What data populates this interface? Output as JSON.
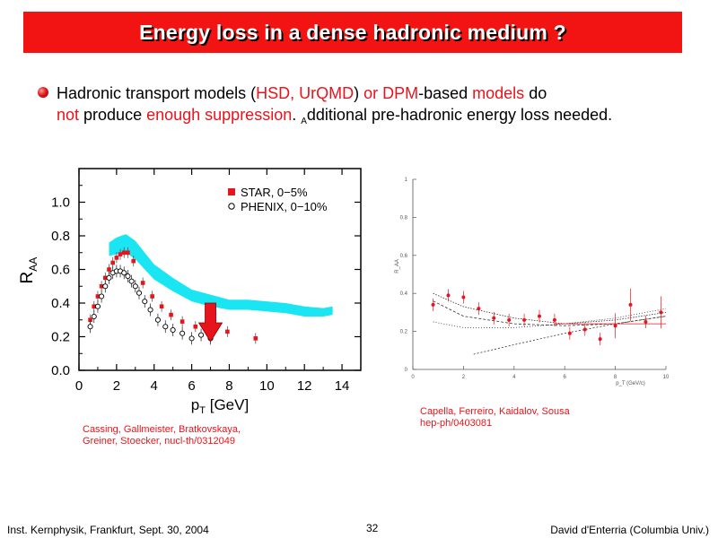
{
  "header": {
    "title": "Energy loss in a dense hadronic medium ?"
  },
  "bullet": {
    "t1": "Hadronic transport models (",
    "t2": "HSD, UrQMD",
    "t3": ") ",
    "t4": "or DPM",
    "t5": "-based ",
    "t6": "models",
    "t7": " do",
    "t8": "not",
    "t9": " produce ",
    "t10": "enough suppression",
    "t11": ". ",
    "t12": "A",
    "t13": "dditional pre-hadronic energy loss needed."
  },
  "credits": {
    "left_line1": "Cassing, Gallmeister, Bratkovskaya,",
    "left_line2": "Greiner, Stoecker, nucl-th/0312049",
    "right_line1": "Capella, Ferreiro, Kaidalov, Sousa",
    "right_line2": "hep-ph/0403081"
  },
  "footer": {
    "left": "Inst. Kernphysik, Frankfurt, Sept. 30, 2004",
    "page": "32",
    "right": "David d'Enterria (Columbia Univ.)"
  },
  "colors": {
    "accent": "#f21313",
    "band": "#19e6f2",
    "data_red": "#e8141b"
  },
  "chart_data": [
    {
      "type": "scatter",
      "xlabel": "p_T [GeV]",
      "ylabel": "R_AA",
      "xlim": [
        0,
        15
      ],
      "ylim": [
        0,
        1.2
      ],
      "xticks": [
        "0",
        "2",
        "4",
        "6",
        "8",
        "10",
        "12",
        "14"
      ],
      "yticks": [
        "0.0",
        "0.2",
        "0.4",
        "0.6",
        "0.8",
        "1.0"
      ],
      "legend_position": "top-right",
      "series": [
        {
          "name": "STAR, 0−5%",
          "marker": "filled-square",
          "x": [
            0.6,
            0.8,
            1.0,
            1.2,
            1.4,
            1.6,
            1.8,
            2.0,
            2.2,
            2.4,
            2.6,
            2.9,
            3.4,
            3.9,
            4.4,
            4.9,
            5.5,
            6.2,
            7.0,
            7.9,
            9.4
          ],
          "y": [
            0.3,
            0.38,
            0.44,
            0.5,
            0.55,
            0.6,
            0.64,
            0.67,
            0.69,
            0.7,
            0.7,
            0.65,
            0.52,
            0.44,
            0.38,
            0.33,
            0.29,
            0.26,
            0.24,
            0.23,
            0.19
          ]
        },
        {
          "name": "PHENIX, 0−10%",
          "marker": "open-circle",
          "x": [
            0.6,
            0.8,
            1.0,
            1.2,
            1.4,
            1.6,
            1.8,
            2.0,
            2.2,
            2.4,
            2.6,
            2.8,
            3.0,
            3.2,
            3.5,
            3.8,
            4.2,
            4.6,
            5.0,
            5.5,
            6.0,
            6.5,
            7.0
          ],
          "y": [
            0.26,
            0.32,
            0.38,
            0.44,
            0.5,
            0.55,
            0.58,
            0.59,
            0.59,
            0.58,
            0.56,
            0.53,
            0.5,
            0.46,
            0.41,
            0.36,
            0.3,
            0.26,
            0.24,
            0.22,
            0.19,
            0.21,
            0.19
          ]
        }
      ],
      "band": {
        "x": [
          1.6,
          2.0,
          2.5,
          3.0,
          3.5,
          4.0,
          5.0,
          6.0,
          7.0,
          8.0,
          9.0,
          10.0,
          11.0,
          12.0,
          13.0,
          13.5
        ],
        "lower": [
          0.68,
          0.69,
          0.7,
          0.66,
          0.6,
          0.54,
          0.47,
          0.41,
          0.38,
          0.36,
          0.36,
          0.35,
          0.34,
          0.32,
          0.32,
          0.33
        ],
        "upper": [
          0.76,
          0.79,
          0.81,
          0.77,
          0.7,
          0.63,
          0.55,
          0.48,
          0.45,
          0.42,
          0.42,
          0.41,
          0.4,
          0.38,
          0.37,
          0.38
        ]
      },
      "arrow_x": 7.0
    },
    {
      "type": "scatter",
      "xlim": [
        0,
        10
      ],
      "ylim": [
        0,
        1.0
      ],
      "xticks": [
        "0",
        "2",
        "4",
        "6",
        "8",
        "10"
      ],
      "yticks": [
        "0",
        "0.2",
        "0.4",
        "0.6",
        "0.8",
        "1"
      ],
      "xlabel": "p_T (GeV/c)",
      "ylabel": "R_AA",
      "series": [
        {
          "name": "data",
          "x": [
            0.8,
            1.4,
            2.0,
            2.6,
            3.2,
            3.8,
            4.4,
            5.0,
            5.6,
            6.2,
            6.8,
            7.4,
            8.0,
            8.6,
            9.2,
            9.8
          ],
          "y": [
            0.34,
            0.39,
            0.38,
            0.32,
            0.27,
            0.26,
            0.26,
            0.28,
            0.26,
            0.19,
            0.21,
            0.16,
            0.23,
            0.34,
            0.25,
            0.3
          ]
        }
      ],
      "hline": 0.24
    }
  ]
}
